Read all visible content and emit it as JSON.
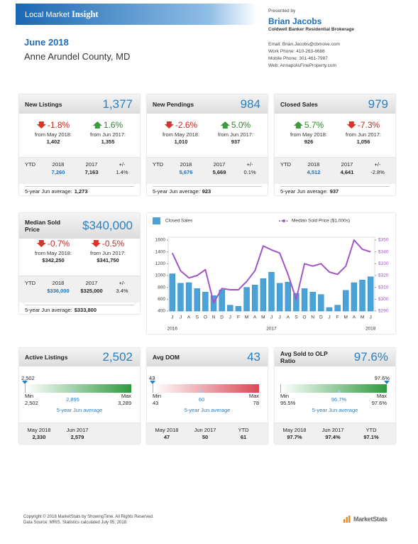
{
  "header": {
    "brand": "Local Market",
    "brand_bold": "Insight",
    "period": "June 2018",
    "region": "Anne Arundel County, MD"
  },
  "agent": {
    "presented_by": "Presented by",
    "name": "Brian Jacobs",
    "company": "Coldwell Banker Residential Brokerage",
    "contacts": [
      "Email: Brian.Jacobs@cbmove.com",
      "Work Phone: 410-263-8686",
      "Mobile Phone: 301-461-7987",
      "Web: AnnapolisFineProperty.com"
    ]
  },
  "metric_cards": [
    {
      "title": "New Listings",
      "value": "1,377",
      "changes": [
        {
          "pct": "-1.8%",
          "direction": "down",
          "label": "from May 2018:",
          "value": "1,402"
        },
        {
          "pct": "1.6%",
          "direction": "up",
          "label": "from Jun 2017:",
          "value": "1,355"
        }
      ],
      "ytd": {
        "labels": [
          "YTD",
          "2018",
          "2017",
          "+/-"
        ],
        "values": [
          "7,260",
          "7,163",
          "1.4%"
        ]
      },
      "average": {
        "label": "5-year Jun average:",
        "value": "1,273"
      }
    },
    {
      "title": "New Pendings",
      "value": "984",
      "changes": [
        {
          "pct": "-2.6%",
          "direction": "down",
          "label": "from May 2018:",
          "value": "1,010"
        },
        {
          "pct": "5.0%",
          "direction": "up",
          "label": "from Jun 2017:",
          "value": "937"
        }
      ],
      "ytd": {
        "labels": [
          "YTD",
          "2018",
          "2017",
          "+/-"
        ],
        "values": [
          "5,676",
          "5,669",
          "0.1%"
        ]
      },
      "average": {
        "label": "5-year Jun average:",
        "value": "923"
      }
    },
    {
      "title": "Closed Sales",
      "value": "979",
      "changes": [
        {
          "pct": "5.7%",
          "direction": "up",
          "label": "from May 2018:",
          "value": "926"
        },
        {
          "pct": "-7.3%",
          "direction": "down",
          "label": "from Jun 2017:",
          "value": "1,056"
        }
      ],
      "ytd": {
        "labels": [
          "YTD",
          "2018",
          "2017",
          "+/-"
        ],
        "values": [
          "4,512",
          "4,641",
          "-2.8%"
        ]
      },
      "average": {
        "label": "5-year Jun average:",
        "value": "937"
      }
    },
    {
      "title": "Median Sold Price",
      "value": "$340,000",
      "changes": [
        {
          "pct": "-0.7%",
          "direction": "down",
          "label": "from May 2018:",
          "value": "$342,250"
        },
        {
          "pct": "-0.5%",
          "direction": "down",
          "label": "from Jun 2017:",
          "value": "$341,750"
        }
      ],
      "ytd": {
        "labels": [
          "YTD",
          "2018",
          "2017",
          "+/-"
        ],
        "values": [
          "$336,000",
          "$325,000",
          "3.4%"
        ]
      },
      "average": {
        "label": "5-year Jun average:",
        "value": "$333,800"
      }
    }
  ],
  "chart_data": {
    "type": "bar",
    "categories": [
      "J",
      "J",
      "A",
      "S",
      "O",
      "N",
      "D",
      "J",
      "F",
      "M",
      "A",
      "M",
      "J",
      "J",
      "A",
      "S",
      "O",
      "N",
      "D",
      "J",
      "F",
      "M",
      "A",
      "M",
      "J"
    ],
    "years": [
      "2016",
      null,
      null,
      null,
      null,
      null,
      null,
      null,
      null,
      null,
      null,
      null,
      "2017",
      null,
      null,
      null,
      null,
      null,
      null,
      null,
      null,
      null,
      null,
      null,
      "2018"
    ],
    "series": [
      {
        "name": "Closed Sales",
        "type": "bar",
        "color": "#4aa3d8",
        "values": [
          1030,
          870,
          880,
          780,
          720,
          660,
          760,
          500,
          480,
          800,
          840,
          950,
          1056,
          870,
          890,
          700,
          780,
          720,
          680,
          460,
          500,
          750,
          880,
          926,
          979
        ]
      },
      {
        "name": "Median Sold Price ($1,000s)",
        "type": "line",
        "axis": "y2",
        "color": "#a055c8",
        "values": [
          339,
          324,
          318,
          320,
          325,
          297,
          309,
          308,
          308,
          315,
          324,
          345,
          341.75,
          339,
          321,
          300,
          330,
          328,
          330,
          323,
          321,
          328,
          350,
          342.25,
          340
        ]
      }
    ],
    "ylim": [
      400,
      1600
    ],
    "yticks": [
      400,
      600,
      800,
      1000,
      1200,
      1400,
      1600
    ],
    "y2lim": [
      290,
      350
    ],
    "y2ticks": [
      {
        "value": 290,
        "label": "$290"
      },
      {
        "value": 300,
        "label": "$300"
      },
      {
        "value": 310,
        "label": "$310"
      },
      {
        "value": 320,
        "label": "$320"
      },
      {
        "value": 330,
        "label": "$330"
      },
      {
        "value": 340,
        "label": "$340"
      },
      {
        "value": 350,
        "label": "$350"
      }
    ],
    "grid": false
  },
  "gauge_cards": [
    {
      "title": "Active Listings",
      "value": "2,502",
      "current": "2,502",
      "min_label": "Min",
      "min": "2,502",
      "avg": "2,895",
      "max_label": "Max",
      "max": "3,289",
      "avg_label": "5-year Jun average",
      "color": "#2f9a3f",
      "history": [
        {
          "label": "May 2018",
          "value": "2,330"
        },
        {
          "label": "Jun 2017",
          "value": "2,579"
        }
      ]
    },
    {
      "title": "Avg DOM",
      "value": "43",
      "current": "43",
      "min_label": "Min",
      "min": "43",
      "avg": "60",
      "max_label": "Max",
      "max": "78",
      "avg_label": "5-year Jun average",
      "color": "#d94a55",
      "history": [
        {
          "label": "May 2018",
          "value": "47"
        },
        {
          "label": "Jun 2017",
          "value": "50"
        },
        {
          "label": "YTD",
          "value": "61"
        }
      ]
    },
    {
      "title": "Avg Sold to OLP Ratio",
      "value": "97.6%",
      "current": "97.6%",
      "min_label": "Min",
      "min": "95.5%",
      "avg": "96.7%",
      "max_label": "Max",
      "max": "97.6%",
      "avg_label": "5-year Jun average",
      "color": "#2f9a3f",
      "history": [
        {
          "label": "May 2018",
          "value": "97.7%"
        },
        {
          "label": "Jun 2017",
          "value": "97.4%"
        },
        {
          "label": "YTD",
          "value": "97.1%"
        }
      ]
    }
  ],
  "footer": {
    "lines": [
      "Copyright © 2018 MarketStats by ShowingTime. All Rights Reserved.",
      "Data Source: MRIS. Statistics calculated July 05, 2018."
    ],
    "logo": "MarketStats"
  }
}
